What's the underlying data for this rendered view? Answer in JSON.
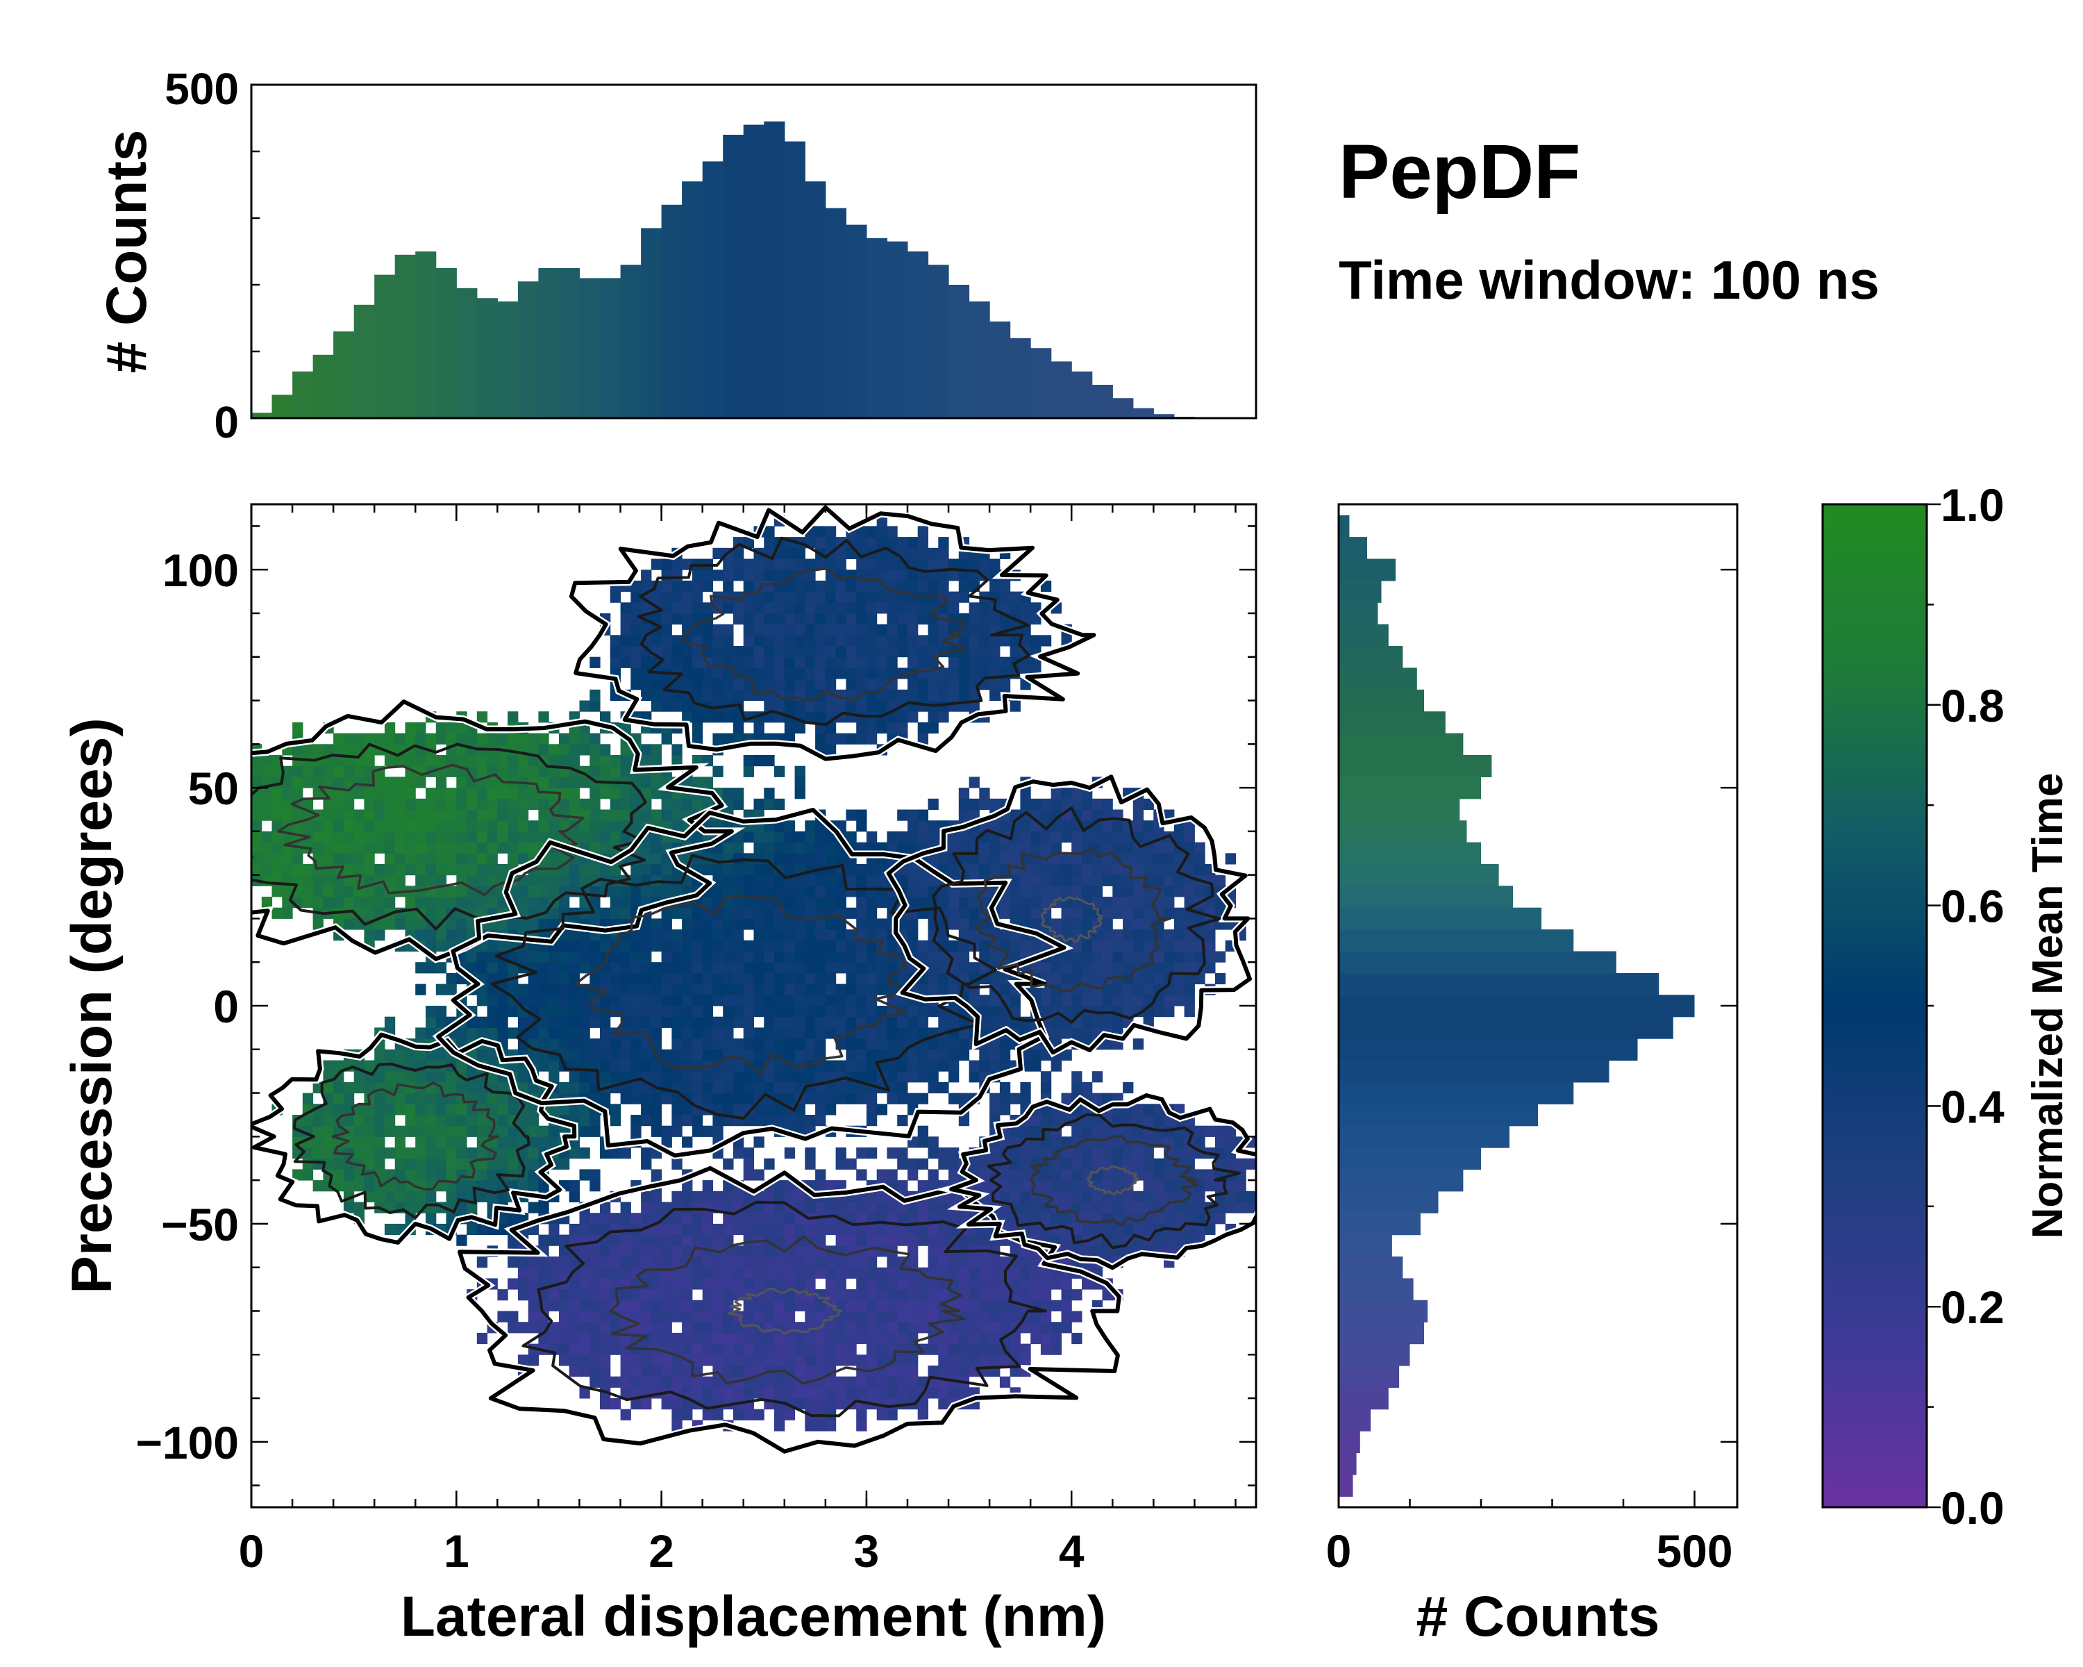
{
  "chart_data": [
    {
      "id": "top-hist",
      "type": "bar",
      "orientation": "vertical",
      "title": "",
      "xlabel": "",
      "ylabel": "# Counts",
      "xlim": [
        0,
        4.9
      ],
      "ylim": [
        0,
        500
      ],
      "yticks": [
        0,
        500
      ],
      "x": [
        0.05,
        0.15,
        0.25,
        0.35,
        0.45,
        0.55,
        0.65,
        0.75,
        0.85,
        0.95,
        1.05,
        1.15,
        1.25,
        1.35,
        1.45,
        1.55,
        1.65,
        1.75,
        1.85,
        1.95,
        2.05,
        2.15,
        2.25,
        2.35,
        2.45,
        2.55,
        2.65,
        2.75,
        2.85,
        2.95,
        3.05,
        3.15,
        3.25,
        3.35,
        3.45,
        3.55,
        3.65,
        3.75,
        3.85,
        3.95,
        4.05,
        4.15,
        4.25,
        4.35,
        4.45,
        4.55,
        4.65,
        4.75
      ],
      "values": [
        8,
        35,
        70,
        95,
        130,
        170,
        215,
        245,
        250,
        225,
        195,
        180,
        175,
        205,
        225,
        225,
        210,
        210,
        230,
        285,
        320,
        355,
        385,
        425,
        440,
        445,
        415,
        355,
        315,
        290,
        270,
        265,
        250,
        230,
        200,
        175,
        145,
        120,
        105,
        85,
        70,
        50,
        30,
        15,
        6,
        2,
        0,
        0
      ],
      "colors": [
        "#2e7d32",
        "#2f7d35",
        "#2d7a3a",
        "#2c7a3a",
        "#2b7840",
        "#2a7745",
        "#297545",
        "#287448",
        "#27714d",
        "#266e50",
        "#256b55",
        "#246858",
        "#23665c",
        "#22635f",
        "#216063",
        "#1f5d66",
        "#1c5a69",
        "#1a566c",
        "#18526f",
        "#164e71",
        "#144a73",
        "#134775",
        "#124476",
        "#114276",
        "#114176",
        "#124176",
        "#124276",
        "#134377",
        "#154578",
        "#174679",
        "#19487a",
        "#1b497b",
        "#1d4a7c",
        "#1f4b7c",
        "#214c7d",
        "#234c7e",
        "#254c7e",
        "#264c7f",
        "#274c7f",
        "#294c80",
        "#2a4c80",
        "#2b4c81",
        "#2c4c81",
        "#2d4c82",
        "#2e4c82",
        "#2e4c82",
        "#2e4c82",
        "#2e4c82"
      ]
    },
    {
      "id": "main-heatmap",
      "type": "heatmap",
      "title": "",
      "xlabel": "Lateral displacement (nm)",
      "ylabel": "Precession (degrees)",
      "xlim": [
        0,
        4.9
      ],
      "ylim": [
        -115,
        115
      ],
      "xticks": [
        0,
        1,
        2,
        3,
        4
      ],
      "yticks": [
        -100,
        -50,
        0,
        50,
        100
      ],
      "regions": [
        {
          "name": "upper-lobe",
          "x_center": 2.8,
          "y_center": 85,
          "x_spread": 1.0,
          "y_spread": 22,
          "value": 0.42
        },
        {
          "name": "left-green-band",
          "x_center": 0.9,
          "y_center": 40,
          "x_spread": 1.1,
          "y_spread": 22,
          "value": 0.85
        },
        {
          "name": "left-lower-green",
          "x_center": 0.8,
          "y_center": -30,
          "x_spread": 0.6,
          "y_spread": 18,
          "value": 0.8
        },
        {
          "name": "central-core",
          "x_center": 2.4,
          "y_center": 5,
          "x_spread": 1.2,
          "y_spread": 30,
          "value": 0.45
        },
        {
          "name": "right-lobe",
          "x_center": 4.0,
          "y_center": 20,
          "x_spread": 0.7,
          "y_spread": 25,
          "value": 0.35
        },
        {
          "name": "lower-lobe",
          "x_center": 2.6,
          "y_center": -70,
          "x_spread": 1.3,
          "y_spread": 25,
          "value": 0.22
        },
        {
          "name": "lower-right",
          "x_center": 4.2,
          "y_center": -40,
          "x_spread": 0.6,
          "y_spread": 15,
          "value": 0.32
        }
      ]
    },
    {
      "id": "right-hist",
      "type": "bar",
      "orientation": "horizontal",
      "title": "",
      "xlabel": "# Counts",
      "ylabel": "",
      "xlim": [
        0,
        560
      ],
      "ylim": [
        -115,
        115
      ],
      "xticks": [
        0,
        500
      ],
      "y": [
        -110,
        -105,
        -100,
        -95,
        -90,
        -85,
        -80,
        -75,
        -70,
        -65,
        -60,
        -55,
        -50,
        -45,
        -40,
        -35,
        -30,
        -25,
        -20,
        -15,
        -10,
        -5,
        0,
        5,
        10,
        15,
        20,
        25,
        30,
        35,
        40,
        45,
        50,
        55,
        60,
        65,
        70,
        75,
        80,
        85,
        90,
        95,
        100,
        105,
        110
      ],
      "values": [
        20,
        25,
        30,
        45,
        70,
        85,
        100,
        120,
        125,
        105,
        90,
        75,
        115,
        140,
        175,
        200,
        240,
        280,
        330,
        380,
        420,
        470,
        500,
        450,
        390,
        330,
        285,
        245,
        225,
        200,
        180,
        170,
        200,
        215,
        175,
        150,
        120,
        110,
        90,
        70,
        55,
        60,
        80,
        40,
        15
      ],
      "colors": [
        "#5b3a9a",
        "#583c9a",
        "#553e9a",
        "#51419a",
        "#4d449a",
        "#494799",
        "#454a99",
        "#414d98",
        "#3e4f97",
        "#3a5196",
        "#365295",
        "#325494",
        "#2e5592",
        "#2a5490",
        "#26538e",
        "#22528c",
        "#1e508a",
        "#1a4e87",
        "#174b83",
        "#14487e",
        "#12457a",
        "#114377",
        "#124477",
        "#14497a",
        "#18517a",
        "#1c5a79",
        "#206377",
        "#236a73",
        "#26706c",
        "#277363",
        "#28755b",
        "#287656",
        "#277551",
        "#26724e",
        "#25704d",
        "#246d50",
        "#236b53",
        "#226957",
        "#21675b",
        "#20655f",
        "#1f6363",
        "#1e6166",
        "#1d5f69",
        "#1c5d6b",
        "#1b5b6d"
      ]
    },
    {
      "id": "colorbar",
      "type": "colorbar",
      "label": "Normalized Mean Time",
      "range": [
        0.0,
        1.0
      ],
      "tick_labels": [
        "0.0",
        "0.2",
        "0.4",
        "0.6",
        "0.8",
        "1.0"
      ],
      "stops": [
        "#6a32a0",
        "#3d3a96",
        "#1f3f80",
        "#003a6e",
        "#125c66",
        "#1e7a3a",
        "#228b22"
      ]
    }
  ],
  "header": {
    "title": "PepDF",
    "subtitle": "Time window: 100 ns"
  }
}
